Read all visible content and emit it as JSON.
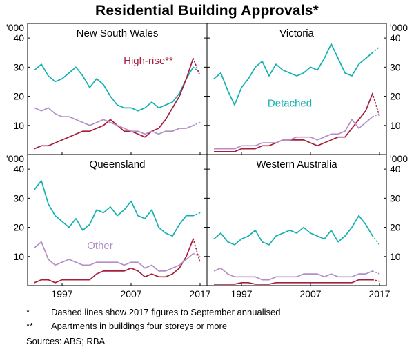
{
  "title": "Residential Building Approvals*",
  "footnotes": [
    {
      "marker": "*",
      "text": "Dashed lines show 2017 figures to September annualised"
    },
    {
      "marker": "**",
      "text": "Apartments in buildings four storeys or more"
    }
  ],
  "sources": "Sources: ABS; RBA",
  "chart_data": {
    "type": "line",
    "title": "Residential Building Approvals",
    "ylabel": "'000",
    "xlabel": "",
    "ylim": [
      0,
      45
    ],
    "y_ticks": [
      10,
      20,
      30,
      40
    ],
    "x_ticks": [
      1997,
      2007,
      2017
    ],
    "legend_note": "last x-point (2017) drawn dashed = September annualised",
    "colors": {
      "detached": "#14B0B0",
      "high_rise": "#A61E3C",
      "other": "#B48EC6"
    },
    "x": [
      1993,
      1994,
      1995,
      1996,
      1997,
      1998,
      1999,
      2000,
      2001,
      2002,
      2003,
      2004,
      2005,
      2006,
      2007,
      2008,
      2009,
      2010,
      2011,
      2012,
      2013,
      2014,
      2015,
      2016,
      2017
    ],
    "panels": [
      {
        "title": "New South Wales",
        "label": {
          "text": "High-rise**",
          "series": "high_rise",
          "year": 2009.5,
          "value": 31
        },
        "series": [
          {
            "name": "Detached",
            "key": "detached",
            "values": [
              29,
              31,
              27,
              25,
              26,
              28,
              30,
              27,
              23,
              26,
              24,
              20,
              17,
              16,
              16,
              15,
              16,
              18,
              16,
              17,
              18,
              21,
              26,
              30,
              28
            ]
          },
          {
            "name": "High-rise",
            "key": "high_rise",
            "values": [
              2,
              3,
              3,
              4,
              5,
              6,
              7,
              8,
              8,
              9,
              10,
              12,
              10,
              8,
              8,
              7,
              6,
              8,
              9,
              12,
              16,
              20,
              26,
              33,
              27
            ]
          },
          {
            "name": "Other",
            "key": "other",
            "values": [
              16,
              15,
              16,
              14,
              13,
              13,
              12,
              11,
              10,
              11,
              12,
              11,
              10,
              9,
              8,
              8,
              7,
              8,
              7,
              8,
              8,
              9,
              9,
              10,
              11
            ]
          }
        ]
      },
      {
        "title": "Victoria",
        "label": {
          "text": "Detached",
          "series": "detached",
          "year": 2004,
          "value": 16.5
        },
        "series": [
          {
            "name": "Detached",
            "key": "detached",
            "values": [
              26,
              28,
              22,
              17,
              23,
              26,
              30,
              32,
              27,
              31,
              29,
              28,
              27,
              28,
              30,
              29,
              33,
              38,
              33,
              28,
              27,
              31,
              33,
              35,
              37
            ]
          },
          {
            "name": "High-rise",
            "key": "high_rise",
            "values": [
              1,
              1,
              1,
              1,
              2,
              2,
              2,
              3,
              3,
              4,
              5,
              5,
              5,
              5,
              4,
              3,
              4,
              5,
              6,
              6,
              9,
              12,
              15,
              21,
              13
            ]
          },
          {
            "name": "Other",
            "key": "other",
            "values": [
              2,
              2,
              2,
              2,
              3,
              3,
              3,
              4,
              4,
              4,
              5,
              5,
              6,
              6,
              6,
              5,
              6,
              7,
              7,
              8,
              12,
              9,
              11,
              13,
              14
            ]
          }
        ]
      },
      {
        "title": "Queensland",
        "label": {
          "text": "Other",
          "series": "other",
          "year": 2002.5,
          "value": 12.5
        },
        "series": [
          {
            "name": "Detached",
            "key": "detached",
            "values": [
              33,
              36,
              28,
              24,
              22,
              20,
              23,
              19,
              21,
              26,
              25,
              27,
              24,
              26,
              29,
              24,
              23,
              26,
              20,
              18,
              17,
              21,
              24,
              24,
              25
            ]
          },
          {
            "name": "High-rise",
            "key": "high_rise",
            "values": [
              1,
              2,
              2,
              1,
              2,
              2,
              2,
              2,
              2,
              4,
              5,
              5,
              5,
              5,
              6,
              5,
              3,
              4,
              3,
              3,
              4,
              6,
              10,
              16,
              8
            ]
          },
          {
            "name": "Other",
            "key": "other",
            "values": [
              13,
              15,
              9,
              7,
              8,
              9,
              8,
              7,
              7,
              8,
              8,
              8,
              8,
              7,
              8,
              8,
              6,
              7,
              5,
              5,
              6,
              7,
              9,
              11,
              10
            ]
          }
        ]
      },
      {
        "title": "Western Australia",
        "label": null,
        "series": [
          {
            "name": "Detached",
            "key": "detached",
            "values": [
              16,
              18,
              15,
              14,
              16,
              17,
              19,
              15,
              14,
              17,
              18,
              19,
              18,
              20,
              18,
              17,
              16,
              19,
              15,
              17,
              20,
              24,
              21,
              17,
              14
            ]
          },
          {
            "name": "High-rise",
            "key": "high_rise",
            "values": [
              0.5,
              0.5,
              0.5,
              0.5,
              1,
              1,
              0.5,
              0.5,
              0.5,
              1,
              1,
              1,
              1,
              1,
              1,
              1,
              1,
              1,
              1,
              1,
              1,
              2,
              2,
              2,
              1.5
            ]
          },
          {
            "name": "Other",
            "key": "other",
            "values": [
              5,
              6,
              4,
              3,
              3,
              3,
              3,
              2,
              2,
              3,
              3,
              3,
              3,
              4,
              4,
              4,
              3,
              4,
              3,
              3,
              3,
              4,
              4,
              5,
              4
            ]
          }
        ]
      }
    ]
  }
}
